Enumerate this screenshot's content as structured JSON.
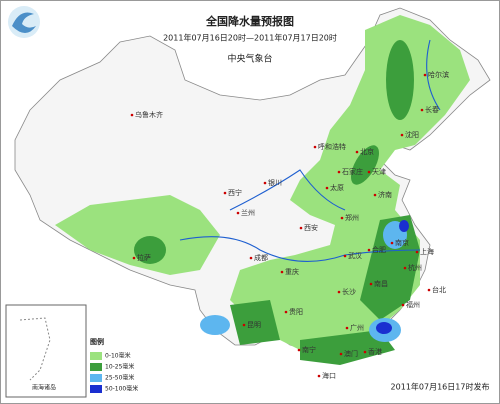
{
  "header": {
    "title": "全国降水量预报图",
    "period": "2011年07月16日20时—2011年07月17日20时",
    "issuer": "中央气象台"
  },
  "cities": [
    "乌鲁木齐",
    "哈尔滨",
    "长春",
    "沈阳",
    "呼和浩特",
    "北京",
    "天津",
    "石家庄",
    "太原",
    "银川",
    "西宁",
    "兰州",
    "济南",
    "郑州",
    "西安",
    "合肥",
    "南京",
    "上海",
    "杭州",
    "武汉",
    "成都",
    "重庆",
    "长沙",
    "南昌",
    "福州",
    "台北",
    "贵阳",
    "昆明",
    "南宁",
    "广州",
    "香港",
    "澳门",
    "海口",
    "拉萨"
  ],
  "inset": {
    "label": "南海诸岛"
  },
  "legend": {
    "title": "图例",
    "items": [
      {
        "label": "0-10毫米",
        "color": "#9be27e"
      },
      {
        "label": "10-25毫米",
        "color": "#3c9e3c"
      },
      {
        "label": "25-50毫米",
        "color": "#5db6ef"
      },
      {
        "label": "50-100毫米",
        "color": "#1a2fd0"
      }
    ]
  },
  "footer": {
    "issued": "2011年07月16日17时发布"
  }
}
